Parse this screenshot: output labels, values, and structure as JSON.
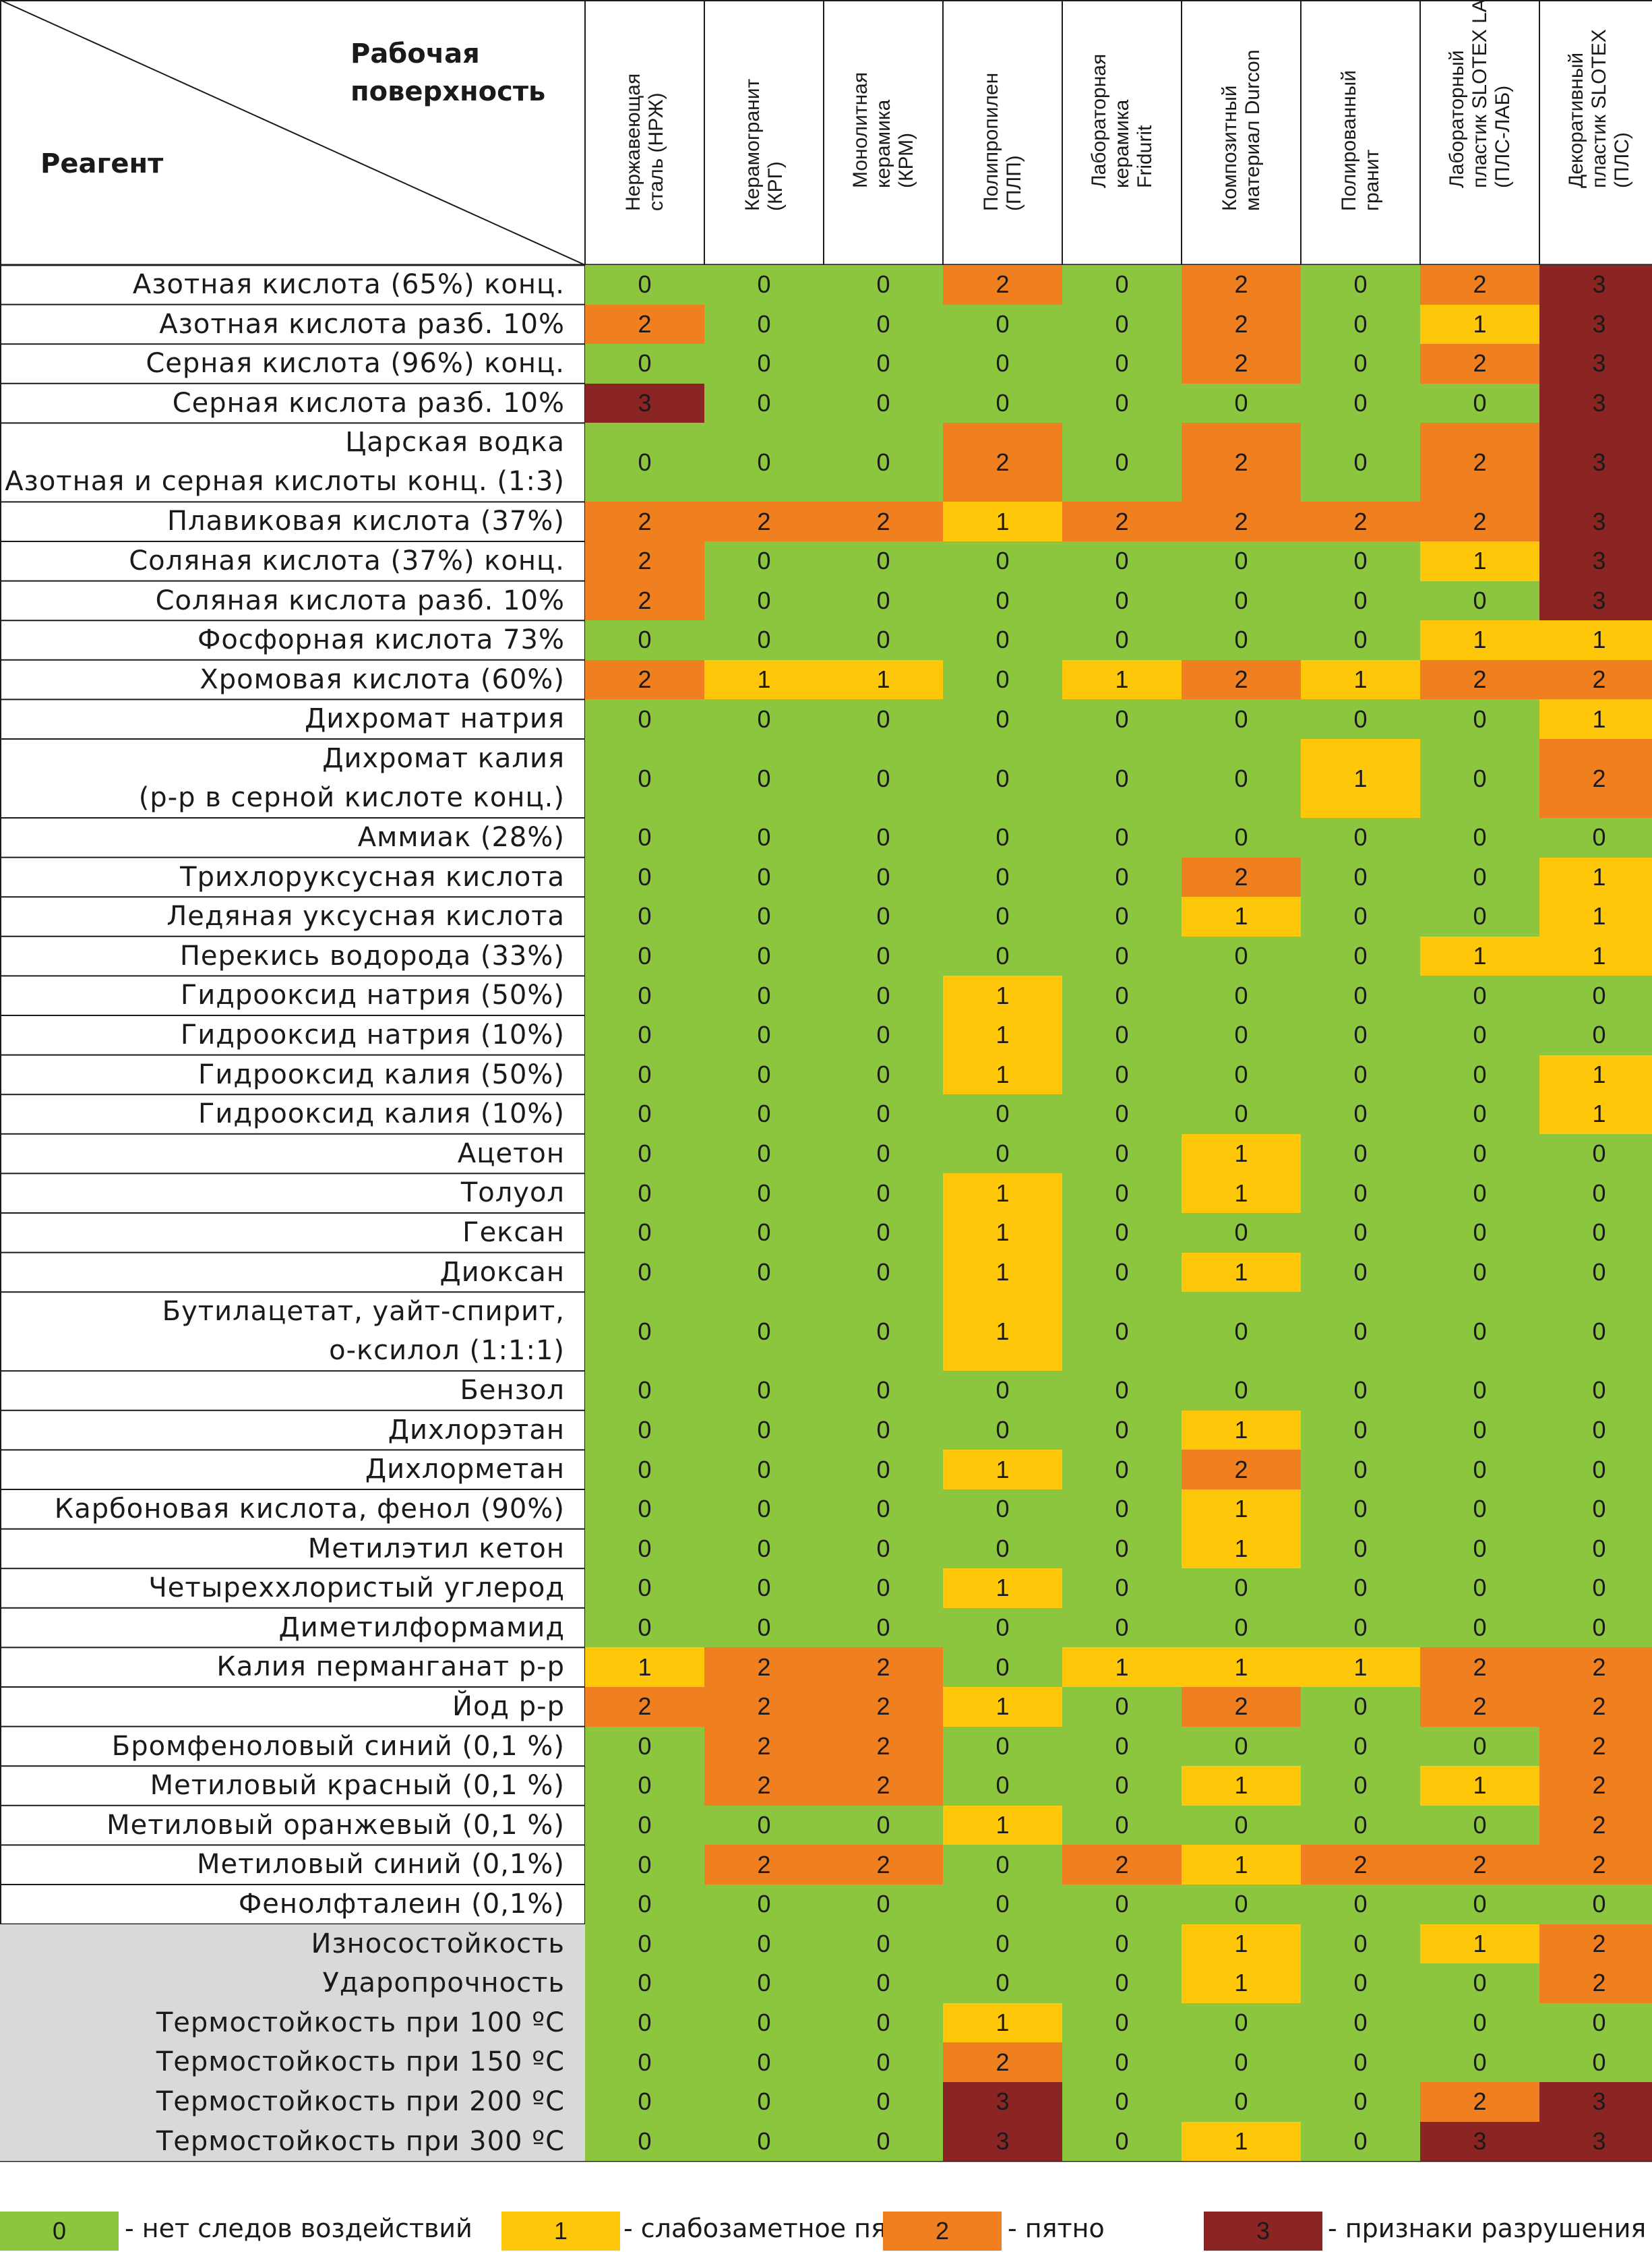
{
  "header": {
    "surface_label": "Рабочая\nповерхность",
    "reagent_label": "Реагент",
    "columns": [
      "Нержавеющая\nсталь (НРЖ)",
      "Керамогранит\n(КРГ)",
      "Монолитная\nкерамика\n(КРМ)",
      "Полипропилен\n(ПЛП)",
      "Лабораторная\nкерамика\nFridurit",
      "Композитный\nматериал Durcon",
      "Полированный\nгранит",
      "Лабораторный\nпластик SLOTEX LAB\n(ПЛС-ЛАБ)",
      "Декоративный\nпластик SLOTEX\n(ПЛС)"
    ]
  },
  "colors": {
    "0": "#8cc63f",
    "1": "#ffc709",
    "2": "#f07f1f",
    "3": "#8b2524"
  },
  "rows": [
    {
      "label": "Азотная кислота (65%) конц.",
      "values": [
        0,
        0,
        0,
        2,
        0,
        2,
        0,
        2,
        3
      ]
    },
    {
      "label": "Азотная кислота разб. 10%",
      "values": [
        2,
        0,
        0,
        0,
        0,
        2,
        0,
        1,
        3
      ]
    },
    {
      "label": "Серная кислота (96%) конц.",
      "values": [
        0,
        0,
        0,
        0,
        0,
        2,
        0,
        2,
        3
      ]
    },
    {
      "label": "Серная кислота разб. 10%",
      "values": [
        3,
        0,
        0,
        0,
        0,
        0,
        0,
        0,
        3
      ]
    },
    {
      "label": "Царская водка\nАзотная и серная кислоты конц. (1:3)",
      "values": [
        0,
        0,
        0,
        2,
        0,
        2,
        0,
        2,
        3
      ],
      "tall": true
    },
    {
      "label": "Плавиковая кислота (37%)",
      "values": [
        2,
        2,
        2,
        1,
        2,
        2,
        2,
        2,
        3
      ]
    },
    {
      "label": "Соляная кислота (37%) конц.",
      "values": [
        2,
        0,
        0,
        0,
        0,
        0,
        0,
        1,
        3
      ]
    },
    {
      "label": "Соляная кислота разб. 10%",
      "values": [
        2,
        0,
        0,
        0,
        0,
        0,
        0,
        0,
        3
      ]
    },
    {
      "label": "Фосфорная кислота 73%",
      "values": [
        0,
        0,
        0,
        0,
        0,
        0,
        0,
        1,
        1
      ]
    },
    {
      "label": "Хромовая кислота (60%)",
      "values": [
        2,
        1,
        1,
        0,
        1,
        2,
        1,
        2,
        2
      ]
    },
    {
      "label": "Дихромат натрия",
      "values": [
        0,
        0,
        0,
        0,
        0,
        0,
        0,
        0,
        1
      ]
    },
    {
      "label": "Дихромат калия\n(р-р в серной кислоте конц.)",
      "values": [
        0,
        0,
        0,
        0,
        0,
        0,
        1,
        0,
        2
      ],
      "tall": true
    },
    {
      "label": "Аммиак (28%)",
      "values": [
        0,
        0,
        0,
        0,
        0,
        0,
        0,
        0,
        0
      ]
    },
    {
      "label": "Трихлоруксусная кислота",
      "values": [
        0,
        0,
        0,
        0,
        0,
        2,
        0,
        0,
        1
      ]
    },
    {
      "label": "Ледяная уксусная кислота",
      "values": [
        0,
        0,
        0,
        0,
        0,
        1,
        0,
        0,
        1
      ]
    },
    {
      "label": "Перекись водорода (33%)",
      "values": [
        0,
        0,
        0,
        0,
        0,
        0,
        0,
        1,
        1
      ]
    },
    {
      "label": "Гидрооксид натрия (50%)",
      "values": [
        0,
        0,
        0,
        1,
        0,
        0,
        0,
        0,
        0
      ]
    },
    {
      "label": "Гидрооксид натрия (10%)",
      "values": [
        0,
        0,
        0,
        1,
        0,
        0,
        0,
        0,
        0
      ]
    },
    {
      "label": "Гидрооксид калия (50%)",
      "values": [
        0,
        0,
        0,
        1,
        0,
        0,
        0,
        0,
        1
      ]
    },
    {
      "label": "Гидрооксид калия (10%)",
      "values": [
        0,
        0,
        0,
        0,
        0,
        0,
        0,
        0,
        1
      ]
    },
    {
      "label": "Ацетон",
      "values": [
        0,
        0,
        0,
        0,
        0,
        1,
        0,
        0,
        0
      ]
    },
    {
      "label": "Толуол",
      "values": [
        0,
        0,
        0,
        1,
        0,
        1,
        0,
        0,
        0
      ]
    },
    {
      "label": "Гексан",
      "values": [
        0,
        0,
        0,
        1,
        0,
        0,
        0,
        0,
        0
      ]
    },
    {
      "label": "Диоксан",
      "values": [
        0,
        0,
        0,
        1,
        0,
        1,
        0,
        0,
        0
      ]
    },
    {
      "label": "Бутилацетат, уайт-спирит,\nо-ксилол (1:1:1)",
      "values": [
        0,
        0,
        0,
        1,
        0,
        0,
        0,
        0,
        0
      ],
      "tall": true
    },
    {
      "label": "Бензол",
      "values": [
        0,
        0,
        0,
        0,
        0,
        0,
        0,
        0,
        0
      ]
    },
    {
      "label": "Дихлорэтан",
      "values": [
        0,
        0,
        0,
        0,
        0,
        1,
        0,
        0,
        0
      ]
    },
    {
      "label": "Дихлорметан",
      "values": [
        0,
        0,
        0,
        1,
        0,
        2,
        0,
        0,
        0
      ]
    },
    {
      "label": "Карбоновая кислота, фенол (90%)",
      "values": [
        0,
        0,
        0,
        0,
        0,
        1,
        0,
        0,
        0
      ]
    },
    {
      "label": "Метилэтил кетон",
      "values": [
        0,
        0,
        0,
        0,
        0,
        1,
        0,
        0,
        0
      ]
    },
    {
      "label": "Четыреххлористый углерод",
      "values": [
        0,
        0,
        0,
        1,
        0,
        0,
        0,
        0,
        0
      ]
    },
    {
      "label": "Диметилформамид",
      "values": [
        0,
        0,
        0,
        0,
        0,
        0,
        0,
        0,
        0
      ]
    },
    {
      "label": "Калия перманганат р-р",
      "values": [
        1,
        2,
        2,
        0,
        1,
        1,
        1,
        2,
        2
      ]
    },
    {
      "label": "Йод р-р",
      "values": [
        2,
        2,
        2,
        1,
        0,
        2,
        0,
        2,
        2
      ]
    },
    {
      "label": "Бромфеноловый синий (0,1 %)",
      "values": [
        0,
        2,
        2,
        0,
        0,
        0,
        0,
        0,
        2
      ]
    },
    {
      "label": "Метиловый красный (0,1 %)",
      "values": [
        0,
        2,
        2,
        0,
        0,
        1,
        0,
        1,
        2
      ]
    },
    {
      "label": "Метиловый оранжевый (0,1 %)",
      "values": [
        0,
        0,
        0,
        1,
        0,
        0,
        0,
        0,
        2
      ]
    },
    {
      "label": "Метиловый синий (0,1%)",
      "values": [
        0,
        2,
        2,
        0,
        2,
        1,
        2,
        2,
        2
      ]
    },
    {
      "label": "Фенолфталеин (0,1%)",
      "values": [
        0,
        0,
        0,
        0,
        0,
        0,
        0,
        0,
        0
      ]
    },
    {
      "label": "Износостойкость",
      "values": [
        0,
        0,
        0,
        0,
        0,
        1,
        0,
        1,
        2
      ],
      "grey": true
    },
    {
      "label": "Ударопрочность",
      "values": [
        0,
        0,
        0,
        0,
        0,
        1,
        0,
        0,
        2
      ],
      "grey": true
    },
    {
      "label": "Термостойкость при 100 ºС",
      "values": [
        0,
        0,
        0,
        1,
        0,
        0,
        0,
        0,
        0
      ],
      "grey": true
    },
    {
      "label": "Термостойкость при 150 ºС",
      "values": [
        0,
        0,
        0,
        2,
        0,
        0,
        0,
        0,
        0
      ],
      "grey": true
    },
    {
      "label": "Термостойкость при 200 ºС",
      "values": [
        0,
        0,
        0,
        3,
        0,
        0,
        0,
        2,
        3
      ],
      "grey": true
    },
    {
      "label": "Термостойкость при 300 ºС",
      "values": [
        0,
        0,
        0,
        3,
        0,
        1,
        0,
        3,
        3
      ],
      "grey": true
    }
  ],
  "legend": [
    {
      "value": "0",
      "text": "- нет следов воздействий"
    },
    {
      "value": "1",
      "text": "- слабозаметное пятно"
    },
    {
      "value": "2",
      "text": "- пятно"
    },
    {
      "value": "3",
      "text": "- признаки разрушения"
    }
  ]
}
